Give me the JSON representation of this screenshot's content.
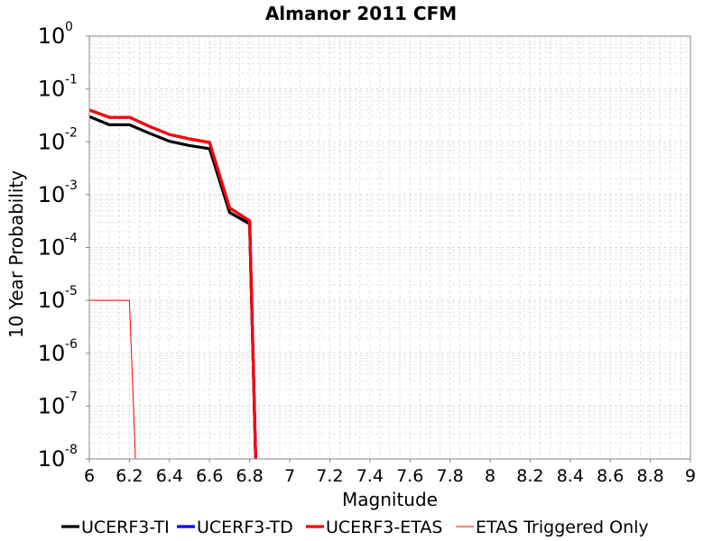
{
  "chart_data": {
    "type": "line",
    "title": "Almanor 2011 CFM",
    "xlabel": "Magnitude",
    "ylabel": "10 Year Probability",
    "xlim": [
      6,
      9
    ],
    "ylim": [
      1e-08,
      1
    ],
    "yscale": "log",
    "grid": true,
    "legend_position": "bottom",
    "x_ticks": [
      "6",
      "6.2",
      "6.4",
      "6.6",
      "6.8",
      "7",
      "7.2",
      "7.4",
      "7.6",
      "7.8",
      "8",
      "8.2",
      "8.4",
      "8.6",
      "8.8",
      "9"
    ],
    "y_tick_base": "10",
    "y_tick_exponents": [
      "0",
      "-1",
      "-2",
      "-3",
      "-4",
      "-5",
      "-6",
      "-7",
      "-8"
    ],
    "series": [
      {
        "name": "UCERF3-TI",
        "color": "#000000",
        "width": "thick",
        "x": [
          6.0,
          6.1,
          6.2,
          6.3,
          6.4,
          6.5,
          6.6,
          6.7,
          6.8,
          6.83
        ],
        "y": [
          0.03,
          0.021,
          0.021,
          0.0145,
          0.0102,
          0.0085,
          0.0074,
          0.00046,
          0.00028,
          1e-08
        ]
      },
      {
        "name": "UCERF3-TD",
        "color": "#0000ff",
        "width": "thick",
        "x": [
          6.0,
          6.1,
          6.2,
          6.3,
          6.4,
          6.5,
          6.6,
          6.7,
          6.8,
          6.83
        ],
        "y": [
          0.04,
          0.029,
          0.029,
          0.0195,
          0.0137,
          0.0113,
          0.0097,
          0.00056,
          0.00032,
          1e-08
        ]
      },
      {
        "name": "UCERF3-ETAS",
        "color": "#ff0000",
        "width": "thick",
        "x": [
          6.0,
          6.1,
          6.2,
          6.3,
          6.4,
          6.5,
          6.6,
          6.7,
          6.8,
          6.83
        ],
        "y": [
          0.04,
          0.029,
          0.029,
          0.0195,
          0.0137,
          0.0113,
          0.0097,
          0.00056,
          0.00032,
          1e-08
        ]
      },
      {
        "name": "ETAS Triggered Only",
        "color": "#ff0000",
        "width": "thin",
        "x": [
          6.0,
          6.1,
          6.2,
          6.23
        ],
        "y": [
          1e-05,
          1e-05,
          1e-05,
          1e-08
        ]
      }
    ]
  }
}
